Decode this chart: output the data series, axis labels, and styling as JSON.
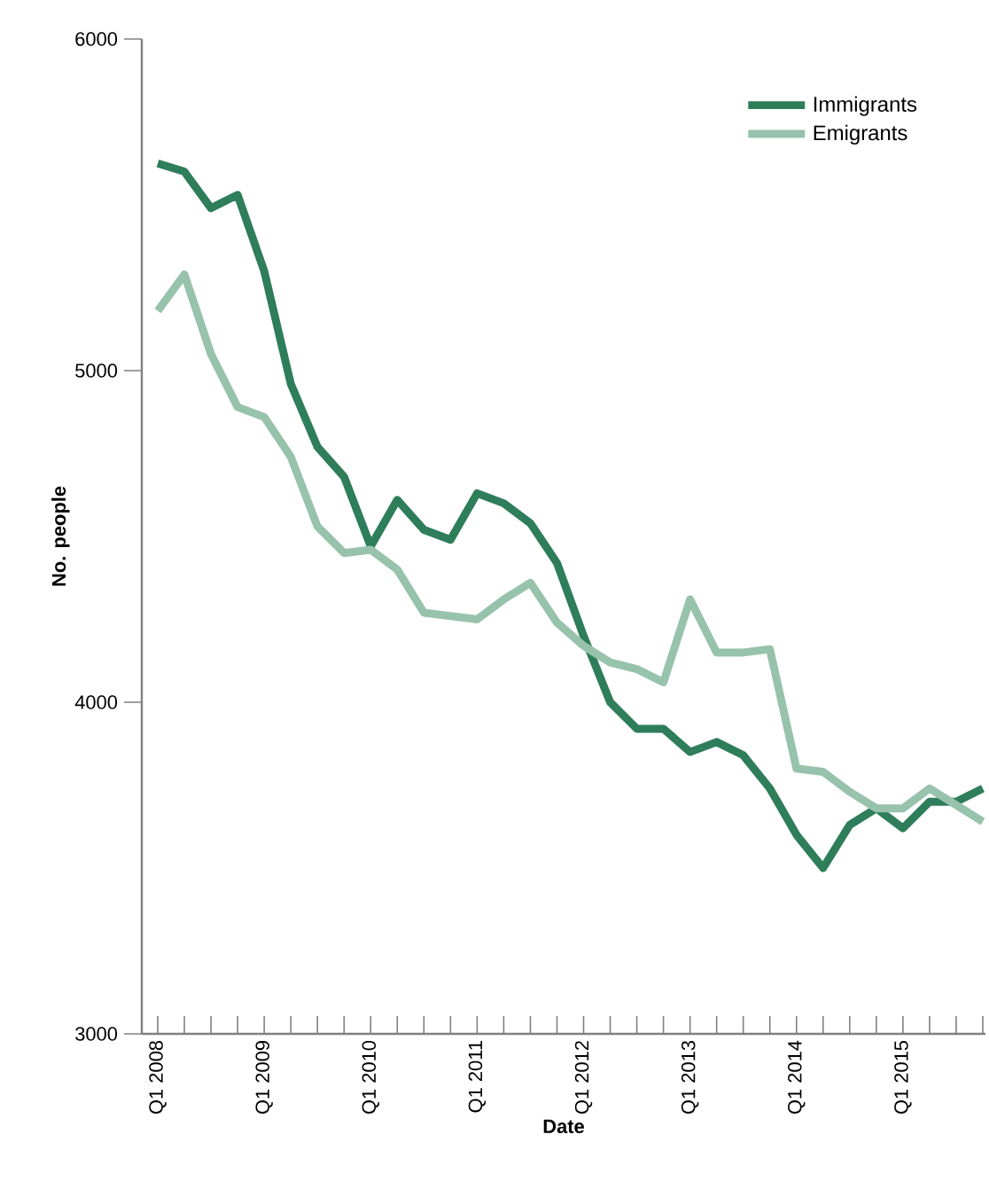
{
  "chart_data": {
    "type": "line",
    "xlabel": "Date",
    "ylabel": "No. people",
    "categories": [
      "Q1 2008",
      null,
      null,
      null,
      "Q1 2009",
      null,
      null,
      null,
      "Q1 2010",
      null,
      null,
      null,
      "Q1 2011",
      null,
      null,
      null,
      "Q1 2012",
      null,
      null,
      null,
      "Q1 2013",
      null,
      null,
      null,
      "Q1 2014",
      null,
      null,
      null,
      "Q1 2015",
      null,
      null,
      null
    ],
    "series": [
      {
        "name": "Immigrants",
        "color": "#2e7d5b",
        "values": [
          5625,
          5600,
          5490,
          5530,
          5300,
          4960,
          4770,
          4680,
          4470,
          4610,
          4520,
          4490,
          4630,
          4600,
          4540,
          4420,
          4200,
          4000,
          3920,
          3920,
          3850,
          3880,
          3840,
          3740,
          3600,
          3500,
          3630,
          3680,
          3620,
          3700,
          3700,
          3740
        ]
      },
      {
        "name": "Emigrants",
        "color": "#97c2ac",
        "values": [
          5180,
          5290,
          5050,
          4890,
          4860,
          4740,
          4530,
          4450,
          4460,
          4400,
          4270,
          4260,
          4250,
          4310,
          4360,
          4240,
          4170,
          4120,
          4100,
          4060,
          4310,
          4150,
          4150,
          4160,
          3800,
          3790,
          3730,
          3680,
          3680,
          3740,
          3690,
          3640
        ]
      }
    ],
    "ylim": [
      3000,
      6000
    ],
    "yticks": [
      3000,
      4000,
      5000,
      6000
    ],
    "grid": false,
    "legend": "top right",
    "marker": "none",
    "line_style": "solid"
  }
}
